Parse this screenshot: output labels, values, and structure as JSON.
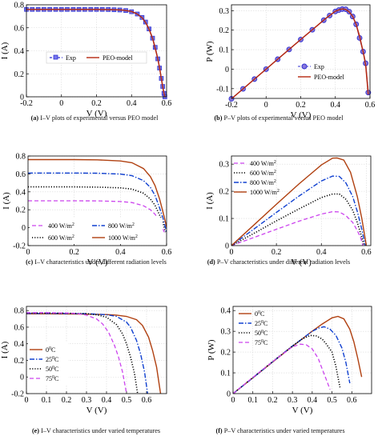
{
  "colors": {
    "exp": "#3030d0",
    "model": "#b5280f",
    "magenta": "#cc44ee",
    "blue": "#1040d0",
    "black": "#000000",
    "brown": "#b04010"
  },
  "chart_data": [
    {
      "id": "a",
      "type": "line",
      "caption_letter": "(a)",
      "caption_text": " I–V plots of experimental versus PEO model",
      "xlabel": "V (V)",
      "ylabel": "I (A)",
      "xlim": [
        -0.2,
        0.6
      ],
      "ylim": [
        0,
        0.8
      ],
      "xticks": [
        "-0.2",
        "0",
        "0.2",
        "0.4",
        "0.6"
      ],
      "yticks": [
        "0",
        "0.2",
        "0.4",
        "0.6",
        "0.8"
      ],
      "grid": true,
      "legend": {
        "position": "center-bottom",
        "entries": [
          "Exp",
          "PEO-model"
        ]
      },
      "series": [
        {
          "name": "Exp",
          "style": "markers-dash",
          "x": [
            -0.2,
            -0.167,
            -0.133,
            -0.1,
            -0.067,
            -0.033,
            0,
            0.033,
            0.067,
            0.1,
            0.133,
            0.167,
            0.2,
            0.233,
            0.267,
            0.3,
            0.333,
            0.367,
            0.4,
            0.433,
            0.46,
            0.48,
            0.5,
            0.52,
            0.535,
            0.55,
            0.56,
            0.57,
            0.578,
            0.585,
            0.59
          ],
          "y": [
            0.76,
            0.76,
            0.76,
            0.76,
            0.76,
            0.76,
            0.76,
            0.76,
            0.76,
            0.76,
            0.76,
            0.76,
            0.76,
            0.76,
            0.759,
            0.757,
            0.755,
            0.75,
            0.74,
            0.72,
            0.69,
            0.65,
            0.59,
            0.51,
            0.43,
            0.33,
            0.25,
            0.16,
            0.09,
            0.03,
            0.0
          ]
        },
        {
          "name": "PEO-model",
          "style": "solid",
          "x": [
            -0.2,
            0,
            0.2,
            0.3,
            0.35,
            0.4,
            0.43,
            0.46,
            0.48,
            0.5,
            0.52,
            0.54,
            0.55,
            0.56,
            0.57,
            0.58,
            0.59
          ],
          "y": [
            0.76,
            0.76,
            0.76,
            0.757,
            0.754,
            0.742,
            0.722,
            0.688,
            0.648,
            0.588,
            0.508,
            0.39,
            0.33,
            0.25,
            0.16,
            0.07,
            0.0
          ]
        }
      ]
    },
    {
      "id": "b",
      "type": "line",
      "caption_letter": "(b)",
      "caption_text": " P–V plots of experimental versus PEO model",
      "xlabel": "V (V)",
      "ylabel": "P (W)",
      "xlim": [
        -0.2,
        0.6
      ],
      "ylim": [
        -0.15,
        0.33
      ],
      "xticks": [
        "-0.2",
        "0",
        "0.2",
        "0.4",
        "0.6"
      ],
      "yticks": [
        "-0.1",
        "0",
        "0.1",
        "0.2",
        "0.3"
      ],
      "grid": true,
      "legend": {
        "position": "bottom-right",
        "entries": [
          "Exp",
          "PEO-model"
        ]
      },
      "series": [
        {
          "name": "Exp",
          "style": "circles-dash",
          "x": [
            -0.2,
            -0.133,
            -0.067,
            0,
            0.067,
            0.133,
            0.2,
            0.267,
            0.333,
            0.367,
            0.4,
            0.42,
            0.44,
            0.46,
            0.48,
            0.5,
            0.52,
            0.54,
            0.56,
            0.575,
            0.59
          ],
          "y": [
            -0.152,
            -0.101,
            -0.051,
            0,
            0.051,
            0.101,
            0.152,
            0.202,
            0.251,
            0.275,
            0.296,
            0.303,
            0.308,
            0.307,
            0.295,
            0.27,
            0.23,
            0.16,
            0.09,
            0.03,
            -0.12
          ]
        },
        {
          "name": "PEO-model",
          "style": "solid",
          "x": [
            -0.2,
            -0.1,
            0,
            0.1,
            0.2,
            0.3,
            0.35,
            0.4,
            0.42,
            0.44,
            0.46,
            0.48,
            0.5,
            0.52,
            0.54,
            0.56,
            0.575,
            0.59
          ],
          "y": [
            -0.152,
            -0.076,
            0,
            0.076,
            0.152,
            0.227,
            0.264,
            0.297,
            0.304,
            0.309,
            0.306,
            0.294,
            0.27,
            0.23,
            0.17,
            0.09,
            0.02,
            -0.13
          ]
        }
      ]
    },
    {
      "id": "c",
      "type": "line",
      "caption_letter": "(c)",
      "caption_text": " I–V characteristics under different radiation levels",
      "xlabel": "V (V)",
      "ylabel": "I (A)",
      "xlim": [
        0,
        0.6
      ],
      "ylim": [
        -0.2,
        0.8
      ],
      "xticks": [
        "0",
        "0.2",
        "0.4",
        "0.6"
      ],
      "yticks": [
        "-0.2",
        "0",
        "0.2",
        "0.4",
        "0.6",
        "0.8"
      ],
      "grid": true,
      "legend": {
        "position": "bottom",
        "entries": [
          "400 W/m",
          "800 W/m",
          "600 W/m",
          "1000 W/m"
        ],
        "superscript": "2"
      },
      "series": [
        {
          "name": "400 W/m2",
          "style": "dashed-magenta",
          "x": [
            0,
            0.1,
            0.2,
            0.3,
            0.4,
            0.45,
            0.5,
            0.53,
            0.55,
            0.57,
            0.58,
            0.59
          ],
          "y": [
            0.3,
            0.3,
            0.3,
            0.299,
            0.292,
            0.28,
            0.245,
            0.2,
            0.15,
            0.07,
            0.02,
            -0.05
          ]
        },
        {
          "name": "600 W/m2",
          "style": "dotted-black",
          "x": [
            0,
            0.1,
            0.2,
            0.3,
            0.4,
            0.45,
            0.5,
            0.53,
            0.55,
            0.57,
            0.585,
            0.595
          ],
          "y": [
            0.455,
            0.455,
            0.455,
            0.453,
            0.445,
            0.43,
            0.385,
            0.32,
            0.25,
            0.14,
            0.05,
            -0.05
          ]
        },
        {
          "name": "800 W/m2",
          "style": "dashdot-blue",
          "x": [
            0,
            0.1,
            0.2,
            0.3,
            0.4,
            0.45,
            0.5,
            0.53,
            0.55,
            0.57,
            0.585,
            0.6
          ],
          "y": [
            0.61,
            0.61,
            0.61,
            0.608,
            0.598,
            0.58,
            0.525,
            0.45,
            0.36,
            0.22,
            0.1,
            -0.05
          ]
        },
        {
          "name": "1000 W/m2",
          "style": "solid-brown",
          "x": [
            0,
            0.1,
            0.2,
            0.3,
            0.4,
            0.45,
            0.5,
            0.53,
            0.55,
            0.57,
            0.59,
            0.605
          ],
          "y": [
            0.76,
            0.76,
            0.76,
            0.757,
            0.745,
            0.725,
            0.66,
            0.57,
            0.47,
            0.32,
            0.12,
            -0.05
          ]
        }
      ]
    },
    {
      "id": "d",
      "type": "line",
      "caption_letter": "(d)",
      "caption_text": " P–V characteristics under different radiation levels",
      "xlabel": "V (V)",
      "ylabel": "I (A)",
      "xlim": [
        0,
        0.62
      ],
      "ylim": [
        0,
        0.33
      ],
      "xticks": [
        "0",
        "0.2",
        "0.4",
        "0.6"
      ],
      "yticks": [
        "0",
        "0.1",
        "0.2",
        "0.3"
      ],
      "grid": true,
      "legend": {
        "position": "top-left",
        "entries": [
          "400 W/m",
          "600 W/m",
          "800 W/m",
          "1000 W/m"
        ],
        "superscript": "2"
      },
      "series": [
        {
          "name": "400 W/m2",
          "style": "dashed-magenta",
          "x": [
            0,
            0.1,
            0.2,
            0.3,
            0.4,
            0.45,
            0.48,
            0.51,
            0.54,
            0.56,
            0.575,
            0.585
          ],
          "y": [
            0,
            0.03,
            0.06,
            0.09,
            0.116,
            0.125,
            0.124,
            0.11,
            0.085,
            0.055,
            0.028,
            0.0
          ]
        },
        {
          "name": "600 W/m2",
          "style": "dotted-black",
          "x": [
            0,
            0.1,
            0.2,
            0.3,
            0.4,
            0.45,
            0.48,
            0.51,
            0.54,
            0.56,
            0.58,
            0.59
          ],
          "y": [
            0,
            0.045,
            0.091,
            0.135,
            0.177,
            0.19,
            0.19,
            0.17,
            0.13,
            0.085,
            0.03,
            0.0
          ]
        },
        {
          "name": "800 W/m2",
          "style": "dashdot-blue",
          "x": [
            0,
            0.1,
            0.2,
            0.3,
            0.4,
            0.45,
            0.48,
            0.51,
            0.54,
            0.56,
            0.58,
            0.595
          ],
          "y": [
            0,
            0.061,
            0.122,
            0.182,
            0.238,
            0.256,
            0.255,
            0.23,
            0.18,
            0.125,
            0.06,
            0.0
          ]
        },
        {
          "name": "1000 W/m2",
          "style": "solid-brown",
          "x": [
            0,
            0.1,
            0.2,
            0.3,
            0.4,
            0.45,
            0.47,
            0.5,
            0.53,
            0.56,
            0.58,
            0.6
          ],
          "y": [
            0,
            0.076,
            0.152,
            0.227,
            0.297,
            0.322,
            0.323,
            0.315,
            0.27,
            0.18,
            0.1,
            0.0
          ]
        }
      ]
    },
    {
      "id": "e",
      "type": "line",
      "caption_letter": "(e)",
      "caption_text": " I–V characteristics under varied temperatures",
      "xlabel": "V (V)",
      "ylabel": "I (A)",
      "xlim": [
        0,
        0.7
      ],
      "ylim": [
        -0.2,
        0.85
      ],
      "xticks": [
        "0",
        "0.1",
        "0.2",
        "0.3",
        "0.4",
        "0.5",
        "0.6"
      ],
      "yticks": [
        "-0.2",
        "0",
        "0.2",
        "0.4",
        "0.6",
        "0.8"
      ],
      "grid": true,
      "legend": {
        "position": "bottom-left",
        "entries": [
          "0",
          "25",
          "50",
          "75"
        ],
        "unit": "C",
        "superscript": "0"
      },
      "series": [
        {
          "name": "0 C",
          "style": "solid-brown",
          "x": [
            0,
            0.1,
            0.2,
            0.3,
            0.4,
            0.45,
            0.5,
            0.55,
            0.58,
            0.61,
            0.63,
            0.65,
            0.67
          ],
          "y": [
            0.76,
            0.76,
            0.759,
            0.757,
            0.752,
            0.745,
            0.73,
            0.69,
            0.62,
            0.48,
            0.32,
            0.12,
            -0.2
          ]
        },
        {
          "name": "25 C",
          "style": "dashdot-blue",
          "x": [
            0,
            0.1,
            0.2,
            0.3,
            0.4,
            0.45,
            0.5,
            0.52,
            0.55,
            0.57,
            0.59,
            0.605
          ],
          "y": [
            0.765,
            0.765,
            0.764,
            0.762,
            0.75,
            0.73,
            0.66,
            0.6,
            0.44,
            0.28,
            0.06,
            -0.2
          ]
        },
        {
          "name": "50 C",
          "style": "dotted-black",
          "x": [
            0,
            0.1,
            0.2,
            0.3,
            0.35,
            0.4,
            0.45,
            0.48,
            0.5,
            0.52,
            0.54,
            0.555
          ],
          "y": [
            0.77,
            0.77,
            0.768,
            0.762,
            0.75,
            0.72,
            0.63,
            0.52,
            0.4,
            0.24,
            0.04,
            -0.2
          ]
        },
        {
          "name": "75 C",
          "style": "dashed-magenta",
          "x": [
            0,
            0.1,
            0.2,
            0.25,
            0.3,
            0.35,
            0.38,
            0.41,
            0.44,
            0.46,
            0.48,
            0.5
          ],
          "y": [
            0.775,
            0.775,
            0.77,
            0.765,
            0.745,
            0.7,
            0.64,
            0.54,
            0.38,
            0.24,
            0.06,
            -0.2
          ]
        }
      ]
    },
    {
      "id": "f",
      "type": "line",
      "caption_letter": "(f)",
      "caption_text": " P–V characteristics under varied temperatures",
      "xlabel": "V (V)",
      "ylabel": "P (W)",
      "xlim": [
        0,
        0.7
      ],
      "ylim": [
        0,
        0.42
      ],
      "xticks": [
        "0",
        "0.1",
        "0.2",
        "0.3",
        "0.4",
        "0.5",
        "0.6"
      ],
      "yticks": [
        "0",
        "0.1",
        "0.2",
        "0.3",
        "0.4"
      ],
      "grid": true,
      "legend": {
        "position": "top-left",
        "entries": [
          "0",
          "25",
          "50",
          "75"
        ],
        "unit": "C",
        "superscript": "0"
      },
      "series": [
        {
          "name": "0 C",
          "style": "solid-brown",
          "x": [
            0,
            0.1,
            0.2,
            0.3,
            0.4,
            0.45,
            0.5,
            0.53,
            0.56,
            0.59,
            0.61,
            0.63,
            0.65
          ],
          "y": [
            0,
            0.076,
            0.152,
            0.227,
            0.301,
            0.335,
            0.365,
            0.372,
            0.36,
            0.31,
            0.25,
            0.17,
            0.08
          ]
        },
        {
          "name": "25 C",
          "style": "dashdot-blue",
          "x": [
            0,
            0.1,
            0.2,
            0.3,
            0.4,
            0.43,
            0.46,
            0.49,
            0.52,
            0.55,
            0.57,
            0.59
          ],
          "y": [
            0,
            0.076,
            0.153,
            0.229,
            0.3,
            0.315,
            0.322,
            0.31,
            0.28,
            0.22,
            0.15,
            0.05
          ]
        },
        {
          "name": "50 C",
          "style": "dotted-black",
          "x": [
            0,
            0.1,
            0.2,
            0.3,
            0.35,
            0.39,
            0.42,
            0.45,
            0.47,
            0.5,
            0.52,
            0.54
          ],
          "y": [
            0,
            0.077,
            0.154,
            0.229,
            0.263,
            0.28,
            0.278,
            0.263,
            0.24,
            0.2,
            0.13,
            0.03
          ]
        },
        {
          "name": "75 C",
          "style": "dashed-magenta",
          "x": [
            0,
            0.1,
            0.2,
            0.25,
            0.3,
            0.34,
            0.37,
            0.4,
            0.43,
            0.45,
            0.47,
            0.49
          ],
          "y": [
            0,
            0.078,
            0.154,
            0.19,
            0.225,
            0.238,
            0.235,
            0.215,
            0.17,
            0.12,
            0.07,
            0.02
          ]
        }
      ]
    }
  ]
}
